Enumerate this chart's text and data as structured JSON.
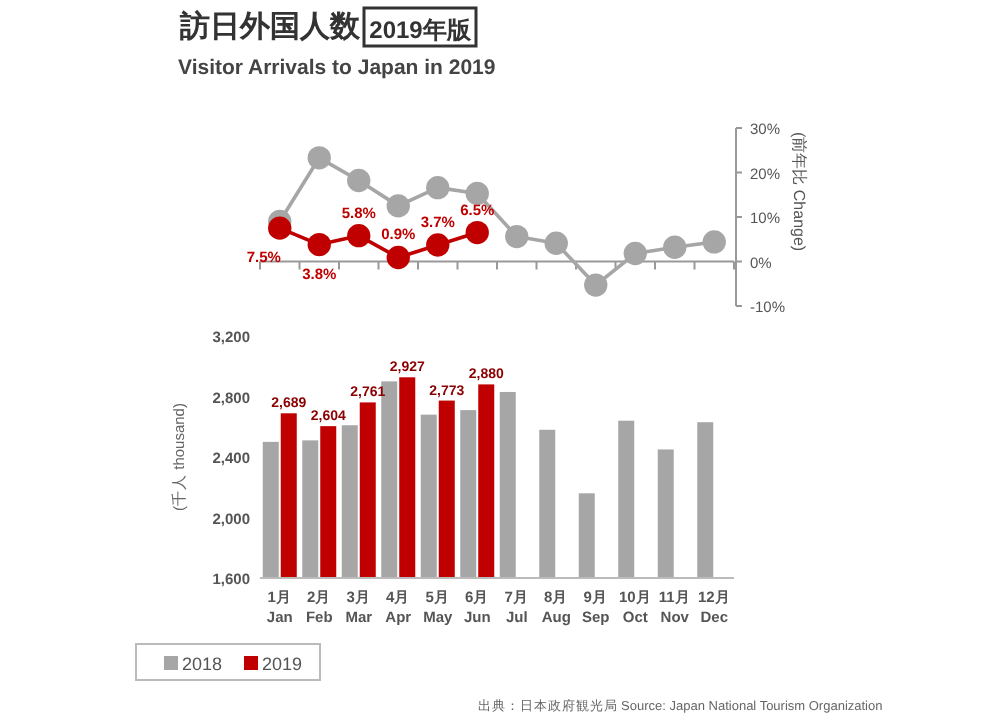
{
  "chart_data": [
    {
      "type": "line",
      "title": "訪日外国人数",
      "subtitle": "Visitor Arrivals to Japan in 2019",
      "annotations": [
        "2019年版"
      ],
      "categories": [
        null,
        null,
        null,
        null,
        null,
        null,
        null,
        null,
        null,
        null,
        null,
        null
      ],
      "ylabel": "(前年比 Change)",
      "ylim": [
        -10,
        30
      ],
      "yticks": [
        {
          "value": -10,
          "label": "-10%"
        },
        {
          "value": 0,
          "label": "0%"
        },
        {
          "value": 10,
          "label": "10%"
        },
        {
          "value": 20,
          "label": "20%"
        },
        {
          "value": 30,
          "label": "30%"
        }
      ],
      "marker": "circle",
      "tick_labels": "y",
      "series": [
        {
          "color": "#a6a6a6",
          "values": [
            9,
            23.3,
            18.2,
            12.5,
            16.6,
            15.3,
            5.6,
            4.1,
            -5.3,
            1.8,
            3.2,
            4.4
          ]
        },
        {
          "color": "#c00000",
          "values": [
            7.5,
            3.8,
            5.8,
            0.9,
            3.7,
            6.5,
            null,
            null,
            null,
            null,
            null,
            null
          ],
          "value_labels": [
            "7.5%",
            "3.8%",
            "5.8%",
            "0.9%",
            "3.7%",
            "6.5%",
            null,
            null,
            null,
            null,
            null,
            null
          ]
        }
      ]
    },
    {
      "type": "bar",
      "categories": [
        "1月 Jan",
        "2月 Feb",
        "3月 Mar",
        "4月 Apr",
        "5月 May",
        "6月 Jun",
        "7月 Jul",
        "8月 Aug",
        "9月 Sep",
        "10月 Oct",
        "11月 Nov",
        "12月 Dec"
      ],
      "ylabel": "(千人 thousand)",
      "ylim": [
        1600,
        3200
      ],
      "yticks": [
        {
          "value": 1600,
          "label": "1,600"
        },
        {
          "value": 2000,
          "label": "2,000"
        },
        {
          "value": 2400,
          "label": "2,400"
        },
        {
          "value": 2800,
          "label": "2,800"
        },
        {
          "value": 3200,
          "label": "3,200"
        }
      ],
      "legend": "bottom left",
      "grid": false,
      "annotations": [
        "出典：日本政府観光局 Source: Japan National Tourism Organization"
      ],
      "series": [
        {
          "name": "2018",
          "color": "#a6a6a6",
          "values": [
            2500,
            2510,
            2610,
            2900,
            2680,
            2710,
            2830,
            2580,
            2160,
            2640,
            2450,
            2630
          ]
        },
        {
          "name": "2019",
          "color": "#c00000",
          "values": [
            2689,
            2604,
            2761,
            2927,
            2773,
            2880,
            null,
            null,
            null,
            null,
            null,
            null
          ],
          "value_labels": [
            "2,689",
            "2,604",
            "2,761",
            "2,927",
            "2,773",
            "2,880",
            null,
            null,
            null,
            null,
            null,
            null
          ]
        }
      ]
    }
  ]
}
